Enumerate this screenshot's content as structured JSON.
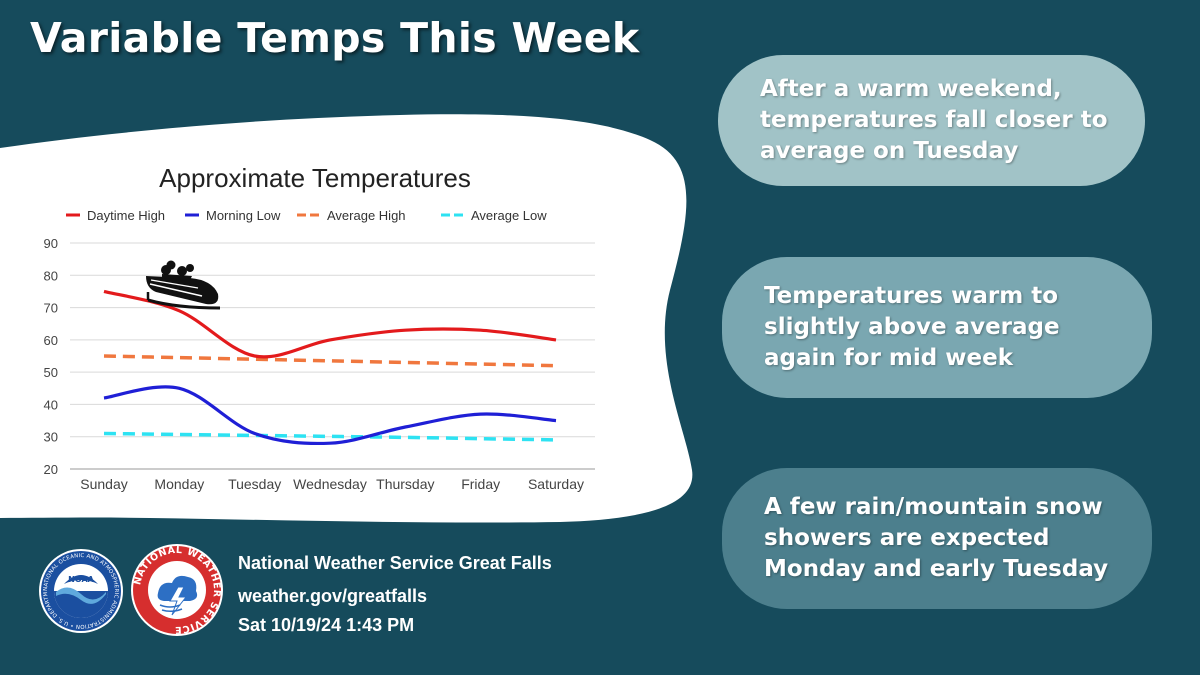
{
  "header": {
    "title": "Variable Temps This Week"
  },
  "chart_data": {
    "type": "line",
    "title": "Approximate Temperatures",
    "xlabel": "",
    "ylabel": "",
    "categories": [
      "Sunday",
      "Monday",
      "Tuesday",
      "Wednesday",
      "Thursday",
      "Friday",
      "Saturday"
    ],
    "ylim": [
      20,
      90
    ],
    "yticks": [
      20,
      30,
      40,
      50,
      60,
      70,
      80,
      90
    ],
    "grid": true,
    "legend_position": "top",
    "series": [
      {
        "name": "Daytime High",
        "color": "#e31a1c",
        "dash": false,
        "values": [
          75,
          69,
          55,
          60,
          63,
          63,
          60
        ]
      },
      {
        "name": "Morning Low",
        "color": "#1f1fd6",
        "dash": false,
        "values": [
          42,
          45,
          31,
          28,
          33,
          37,
          35
        ]
      },
      {
        "name": "Average High",
        "color": "#f0773e",
        "dash": true,
        "values": [
          55,
          54.5,
          54,
          53.5,
          53,
          52.5,
          52
        ]
      },
      {
        "name": "Average Low",
        "color": "#2de2f2",
        "dash": true,
        "values": [
          31,
          30.7,
          30.4,
          30.1,
          29.8,
          29.4,
          29
        ]
      }
    ],
    "annotations": [
      {
        "type": "bobsled-icon"
      }
    ]
  },
  "callouts": [
    "After a warm weekend, temperatures fall closer to average on Tuesday",
    "Temperatures warm to slightly above average again for mid week",
    "A few rain/mountain snow showers are expected Monday and early Tuesday"
  ],
  "colors": {
    "background": "#164b5c",
    "pill_1": "#a1c3c7",
    "pill_2": "#7aa7b1",
    "pill_3": "#4c7f8d"
  },
  "footer": {
    "office": "National Weather Service Great Falls",
    "url": "weather.gov/greatfalls",
    "timestamp": "Sat 10/19/24 1:43 PM"
  },
  "logos": {
    "noaa": {
      "text": "NOAA",
      "ring": "NATIONAL OCEANIC AND ATMOSPHERIC ADMINISTRATION • U.S. DEPARTMENT OF COMMERCE •"
    },
    "nws": {
      "ring": "NATIONAL WEATHER SERVICE"
    }
  }
}
